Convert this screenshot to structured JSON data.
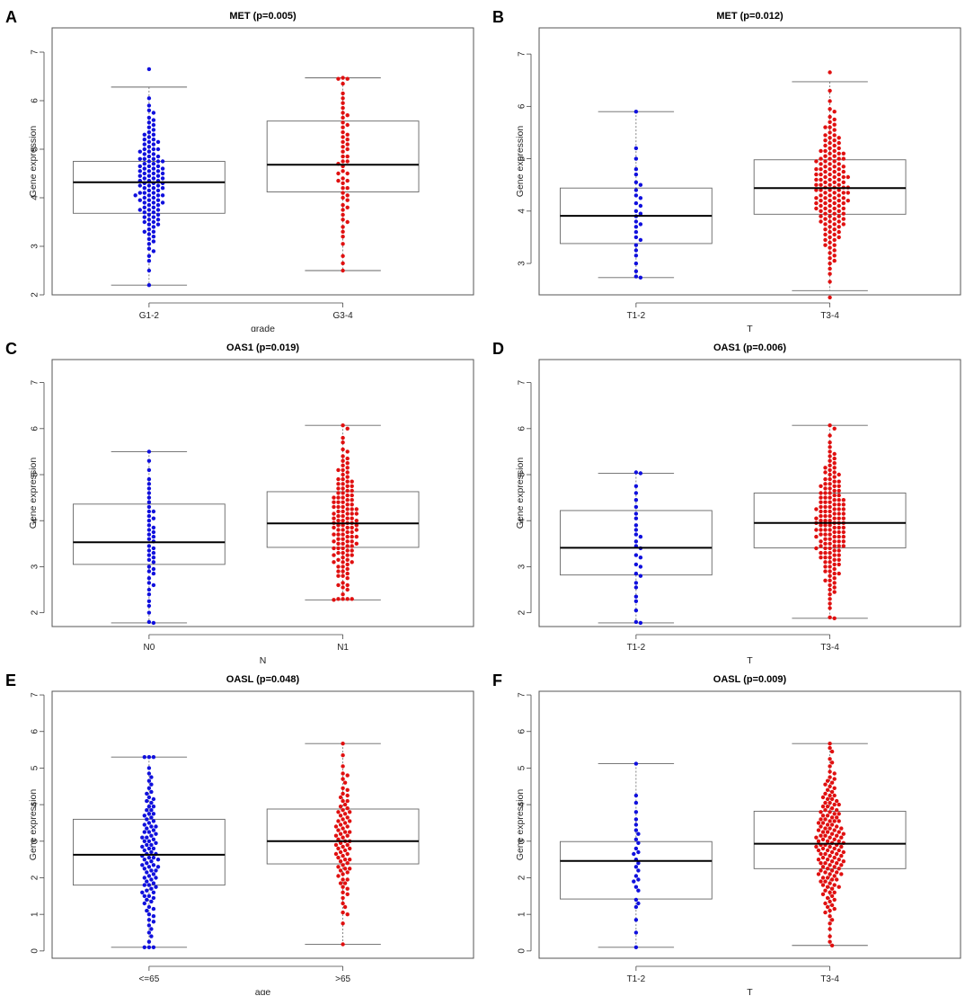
{
  "figure_labels": [
    "A",
    "B",
    "C",
    "D",
    "E",
    "F"
  ],
  "colors": {
    "group1": "#1010dd",
    "group2": "#e01010",
    "box": "#666666",
    "median": "#000000",
    "whisker": "#666666"
  },
  "chart_data": [
    {
      "label": "A",
      "type": "box",
      "title": "MET (p=0.005)",
      "xlabel": "grade",
      "ylabel": "Gene expression",
      "ylim": [
        2,
        7.5
      ],
      "yticks": [
        2,
        3,
        4,
        5,
        6,
        7
      ],
      "categories": [
        "G1-2",
        "G3-4"
      ],
      "boxes": [
        {
          "whisker_low": 2.2,
          "q1": 3.68,
          "median": 4.32,
          "q3": 4.75,
          "whisker_high": 6.28,
          "n": 120,
          "min": 2.2,
          "max": 6.65,
          "color": "#1010dd"
        },
        {
          "whisker_low": 2.5,
          "q1": 4.12,
          "median": 4.68,
          "q3": 5.58,
          "whisker_high": 6.47,
          "n": 55,
          "min": 2.5,
          "max": 6.47,
          "color": "#e01010"
        }
      ]
    },
    {
      "label": "B",
      "type": "box",
      "title": "MET (p=0.012)",
      "xlabel": "T",
      "ylabel": "Gene expression",
      "ylim": [
        2.4,
        7.5
      ],
      "yticks": [
        3,
        4,
        5,
        6,
        7
      ],
      "categories": [
        "T1-2",
        "T3-4"
      ],
      "boxes": [
        {
          "whisker_low": 2.73,
          "q1": 3.38,
          "median": 3.91,
          "q3": 4.44,
          "whisker_high": 5.9,
          "n": 28,
          "min": 2.73,
          "max": 5.9,
          "color": "#1010dd"
        },
        {
          "whisker_low": 2.48,
          "q1": 3.94,
          "median": 4.44,
          "q3": 4.98,
          "whisker_high": 6.47,
          "n": 150,
          "min": 2.35,
          "max": 6.65,
          "color": "#e01010"
        }
      ]
    },
    {
      "label": "C",
      "type": "box",
      "title": "OAS1 (p=0.019)",
      "xlabel": "N",
      "ylabel": "Gene expression",
      "ylim": [
        1.7,
        7.5
      ],
      "yticks": [
        2,
        3,
        4,
        5,
        6,
        7
      ],
      "categories": [
        "N0",
        "N1"
      ],
      "boxes": [
        {
          "whisker_low": 1.78,
          "q1": 3.05,
          "median": 3.53,
          "q3": 4.36,
          "whisker_high": 5.5,
          "n": 45,
          "min": 1.78,
          "max": 5.5,
          "color": "#1010dd"
        },
        {
          "whisker_low": 2.28,
          "q1": 3.42,
          "median": 3.94,
          "q3": 4.63,
          "whisker_high": 6.07,
          "n": 130,
          "min": 2.28,
          "max": 6.07,
          "color": "#e01010"
        }
      ]
    },
    {
      "label": "D",
      "type": "box",
      "title": "OAS1 (p=0.006)",
      "xlabel": "T",
      "ylabel": "Gene expression",
      "ylim": [
        1.7,
        7.5
      ],
      "yticks": [
        2,
        3,
        4,
        5,
        6,
        7
      ],
      "categories": [
        "T1-2",
        "T3-4"
      ],
      "boxes": [
        {
          "whisker_low": 1.78,
          "q1": 2.82,
          "median": 3.41,
          "q3": 4.22,
          "whisker_high": 5.03,
          "n": 28,
          "min": 1.78,
          "max": 5.03,
          "color": "#1010dd"
        },
        {
          "whisker_low": 1.88,
          "q1": 3.41,
          "median": 3.95,
          "q3": 4.6,
          "whisker_high": 6.07,
          "n": 150,
          "min": 1.88,
          "max": 6.07,
          "color": "#e01010"
        }
      ]
    },
    {
      "label": "E",
      "type": "box",
      "title": "OASL (p=0.048)",
      "xlabel": "age",
      "ylabel": "Gene expression",
      "ylim": [
        -0.2,
        7.1
      ],
      "yticks": [
        0,
        1,
        2,
        3,
        4,
        5,
        6,
        7
      ],
      "categories": [
        "<=65",
        ">65"
      ],
      "boxes": [
        {
          "whisker_low": 0.1,
          "q1": 1.8,
          "median": 2.63,
          "q3": 3.6,
          "whisker_high": 5.3,
          "n": 100,
          "min": 0.1,
          "max": 5.3,
          "color": "#1010dd"
        },
        {
          "whisker_low": 0.18,
          "q1": 2.38,
          "median": 3.0,
          "q3": 3.88,
          "whisker_high": 5.67,
          "n": 80,
          "min": 0.18,
          "max": 5.67,
          "color": "#e01010"
        }
      ]
    },
    {
      "label": "F",
      "type": "box",
      "title": "OASL (p=0.009)",
      "xlabel": "T",
      "ylabel": "Gene expression",
      "ylim": [
        -0.2,
        7.1
      ],
      "yticks": [
        0,
        1,
        2,
        3,
        4,
        5,
        6,
        7
      ],
      "categories": [
        "T1-2",
        "T3-4"
      ],
      "boxes": [
        {
          "whisker_low": 0.1,
          "q1": 1.42,
          "median": 2.46,
          "q3": 2.99,
          "whisker_high": 5.12,
          "n": 28,
          "min": 0.1,
          "max": 5.12,
          "color": "#1010dd"
        },
        {
          "whisker_low": 0.15,
          "q1": 2.25,
          "median": 2.93,
          "q3": 3.82,
          "whisker_high": 5.67,
          "n": 150,
          "min": 0.15,
          "max": 5.67,
          "color": "#e01010"
        }
      ]
    }
  ]
}
